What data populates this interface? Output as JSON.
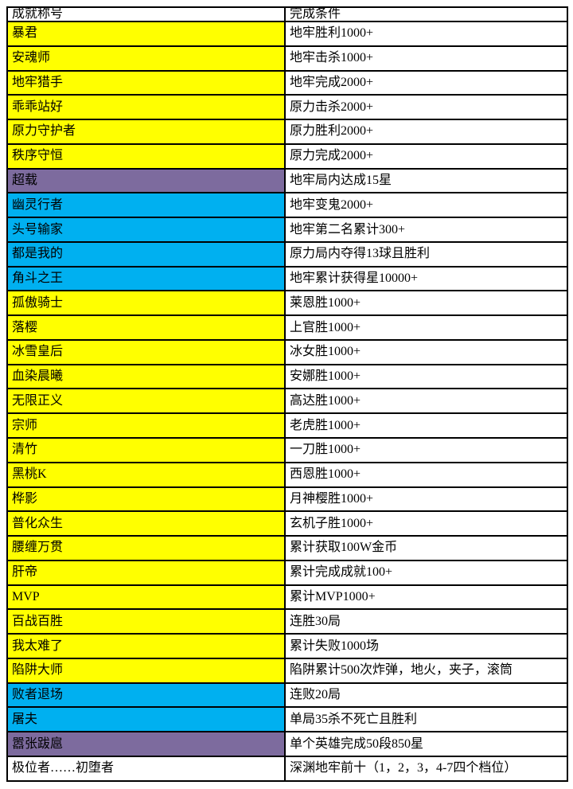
{
  "colors": {
    "yellow": "#ffff00",
    "blue": "#00b0f0",
    "purple": "#7d6b9e",
    "white": "#ffffff"
  },
  "table": {
    "headers": [
      "成就称号",
      "完成条件"
    ],
    "rows": [
      {
        "title": "暴君",
        "condition": "地牢胜利1000+",
        "color": "yellow"
      },
      {
        "title": "安魂师",
        "condition": "地牢击杀1000+",
        "color": "yellow"
      },
      {
        "title": "地牢猎手",
        "condition": "地牢完成2000+",
        "color": "yellow"
      },
      {
        "title": "乖乖站好",
        "condition": "原力击杀2000+",
        "color": "yellow"
      },
      {
        "title": "原力守护者",
        "condition": "原力胜利2000+",
        "color": "yellow"
      },
      {
        "title": "秩序守恒",
        "condition": "原力完成2000+",
        "color": "yellow"
      },
      {
        "title": "超载",
        "condition": "地牢局内达成15星",
        "color": "purple"
      },
      {
        "title": "幽灵行者",
        "condition": "地牢变鬼2000+",
        "color": "blue"
      },
      {
        "title": "头号输家",
        "condition": "地牢第二名累计300+",
        "color": "blue"
      },
      {
        "title": "都是我的",
        "condition": "原力局内夺得13球且胜利",
        "color": "blue"
      },
      {
        "title": "角斗之王",
        "condition": "地牢累计获得星10000+",
        "color": "blue"
      },
      {
        "title": "孤傲骑士",
        "condition": "莱恩胜1000+",
        "color": "yellow"
      },
      {
        "title": "落樱",
        "condition": "上官胜1000+",
        "color": "yellow"
      },
      {
        "title": "冰雪皇后",
        "condition": "冰女胜1000+",
        "color": "yellow"
      },
      {
        "title": "血染晨曦",
        "condition": "安娜胜1000+",
        "color": "yellow"
      },
      {
        "title": "无限正义",
        "condition": "高达胜1000+",
        "color": "yellow"
      },
      {
        "title": "宗师",
        "condition": "老虎胜1000+",
        "color": "yellow"
      },
      {
        "title": "清竹",
        "condition": "一刀胜1000+",
        "color": "yellow"
      },
      {
        "title": "黑桃K",
        "condition": "西恩胜1000+",
        "color": "yellow"
      },
      {
        "title": "桦影",
        "condition": "月神樱胜1000+",
        "color": "yellow"
      },
      {
        "title": "普化众生",
        "condition": "玄机子胜1000+",
        "color": "yellow"
      },
      {
        "title": "腰缠万贯",
        "condition": "累计获取100W金币",
        "color": "yellow"
      },
      {
        "title": "肝帝",
        "condition": "累计完成成就100+",
        "color": "yellow"
      },
      {
        "title": "MVP",
        "condition": "累计MVP1000+",
        "color": "yellow"
      },
      {
        "title": "百战百胜",
        "condition": "连胜30局",
        "color": "yellow"
      },
      {
        "title": "我太难了",
        "condition": "累计失败1000场",
        "color": "yellow"
      },
      {
        "title": "陷阱大师",
        "condition": "陷阱累计500次炸弹，地火，夹子，滚筒",
        "color": "yellow"
      },
      {
        "title": "败者退场",
        "condition": "连败20局",
        "color": "blue"
      },
      {
        "title": "屠夫",
        "condition": "单局35杀不死亡且胜利",
        "color": "blue"
      },
      {
        "title": "嚣张跋扈",
        "condition": "单个英雄完成50段850星",
        "color": "purple"
      },
      {
        "title": "极位者……初堕者",
        "condition": "深渊地牢前十（1，2，3，4-7四个档位）",
        "color": "white"
      }
    ]
  }
}
